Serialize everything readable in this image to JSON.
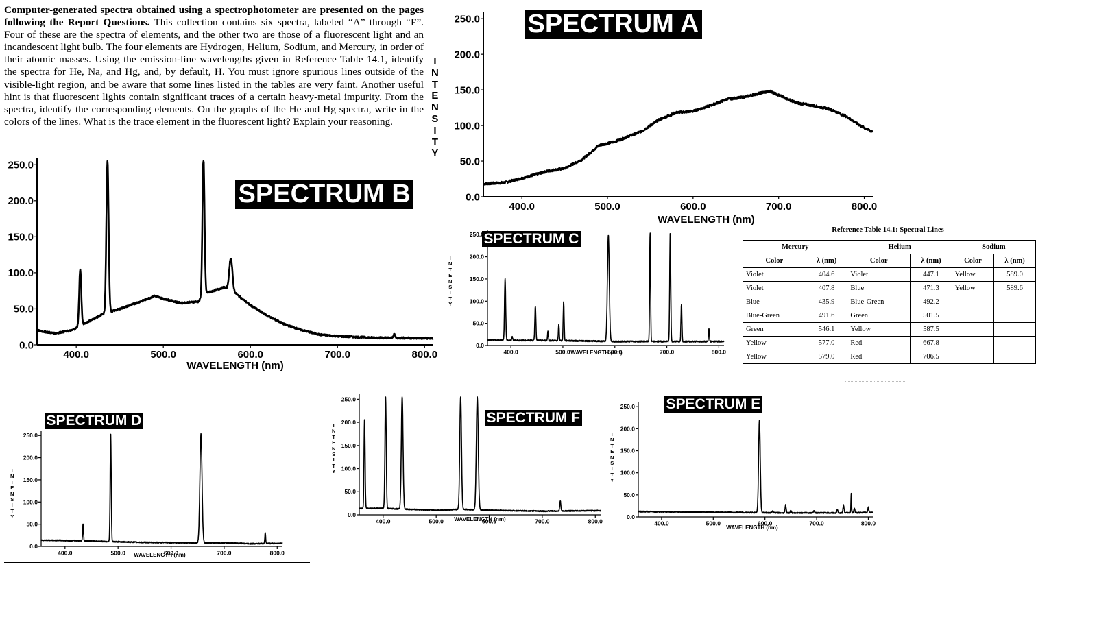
{
  "intro": {
    "bold": "Computer-generated spectra obtained using a spectrophotometer are presented on the pages following the Report Questions.",
    "text": " This collection contains six spectra, labeled “A” through “F”. Four of these are the spectra of elements, and the other two are those of a fluorescent light and an incandescent light bulb. The four elements are Hydrogen, Helium, Sodium, and Mercury, in order of their atomic masses. Using the emission-line wavelengths given in Reference Table 14.1, identify the spectra for He, Na, and Hg, and, by default, H. You must ignore spurious lines outside of the visible-light region, and be aware that some lines listed in the tables are very faint. Another useful hint is that fluorescent lights contain significant traces of a certain heavy-metal impurity. From the spectra, identify the corresponding elements. On the graphs of the He and Hg spectra, write in the colors of the lines. What is the trace element in the fluorescent light? Explain your reasoning."
  },
  "reference_table": {
    "caption": "Reference Table 14.1: Spectral Lines",
    "groups": [
      "Mercury",
      "Helium",
      "Sodium"
    ],
    "col_color": "Color",
    "col_lambda": "λ (nm)",
    "rows": [
      [
        "Violet",
        "404.6",
        "Violet",
        "447.1",
        "Yellow",
        "589.0"
      ],
      [
        "Violet",
        "407.8",
        "Blue",
        "471.3",
        "Yellow",
        "589.6"
      ],
      [
        "Blue",
        "435.9",
        "Blue-Green",
        "492.2",
        "",
        ""
      ],
      [
        "Blue-Green",
        "491.6",
        "Green",
        "501.5",
        "",
        ""
      ],
      [
        "Green",
        "546.1",
        "Yellow",
        "587.5",
        "",
        ""
      ],
      [
        "Yellow",
        "577.0",
        "Red",
        "667.8",
        "",
        ""
      ],
      [
        "Yellow",
        "579.0",
        "Red",
        "706.5",
        "",
        ""
      ]
    ]
  },
  "chart_data": [
    {
      "id": "A",
      "type": "line",
      "title": "SPECTRUM A",
      "xlabel": "WAVELENGTH (nm)",
      "ylabel": "INTENSITY",
      "xlim": [
        355,
        810
      ],
      "ylim": [
        0,
        255
      ],
      "xticks": [
        "400.0",
        "500.0",
        "600.0",
        "700.0",
        "800.0"
      ],
      "yticks": [
        "0.0",
        "50.0",
        "100.0",
        "150.0",
        "200.0",
        "250.0"
      ],
      "grid": false,
      "baseline": [
        [
          355,
          18
        ],
        [
          380,
          20
        ],
        [
          400,
          26
        ],
        [
          430,
          36
        ],
        [
          450,
          40
        ],
        [
          470,
          52
        ],
        [
          490,
          72
        ],
        [
          510,
          78
        ],
        [
          540,
          92
        ],
        [
          560,
          108
        ],
        [
          580,
          118
        ],
        [
          600,
          120
        ],
        [
          620,
          128
        ],
        [
          640,
          137
        ],
        [
          660,
          140
        ],
        [
          680,
          146
        ],
        [
          690,
          148
        ],
        [
          705,
          140
        ],
        [
          720,
          132
        ],
        [
          740,
          128
        ],
        [
          760,
          123
        ],
        [
          780,
          112
        ],
        [
          795,
          100
        ],
        [
          808,
          92
        ]
      ],
      "peaks": [],
      "noise": 1.5
    },
    {
      "id": "B",
      "type": "line",
      "title": "SPECTRUM B",
      "xlabel": "WAVELENGTH (nm)",
      "ylabel": "",
      "xlim": [
        355,
        810
      ],
      "ylim": [
        0,
        255
      ],
      "xticks": [
        "400.0",
        "500.0",
        "600.0",
        "700.0",
        "800.0"
      ],
      "yticks": [
        "0.0",
        "50.0",
        "100.0",
        "150.0",
        "200.0",
        "250.0"
      ],
      "grid": false,
      "baseline": [
        [
          355,
          20
        ],
        [
          375,
          16
        ],
        [
          395,
          20
        ],
        [
          410,
          30
        ],
        [
          430,
          42
        ],
        [
          440,
          46
        ],
        [
          460,
          54
        ],
        [
          480,
          63
        ],
        [
          490,
          68
        ],
        [
          500,
          64
        ],
        [
          520,
          58
        ],
        [
          540,
          60
        ],
        [
          550,
          72
        ],
        [
          570,
          80
        ],
        [
          580,
          74
        ],
        [
          600,
          55
        ],
        [
          620,
          40
        ],
        [
          640,
          28
        ],
        [
          660,
          20
        ],
        [
          680,
          14
        ],
        [
          700,
          12
        ],
        [
          740,
          10
        ],
        [
          810,
          9
        ]
      ],
      "peaks": [
        [
          404.6,
          78,
          1.2
        ],
        [
          435.9,
          210,
          1.3
        ],
        [
          546.1,
          192,
          1.2
        ],
        [
          577.5,
          45,
          1.8
        ],
        [
          765,
          5,
          1
        ]
      ],
      "noise": 1.2
    },
    {
      "id": "C",
      "type": "line",
      "title": "SPECTRUM C",
      "xlabel": "WAVELENGTH (nm)",
      "ylabel": "INTENSITY",
      "xlim": [
        355,
        810
      ],
      "ylim": [
        0,
        255
      ],
      "xticks": [
        "400.0",
        "500.0",
        "600.0",
        "700.0",
        "800.0"
      ],
      "yticks": [
        "0.0",
        "50.0",
        "100.0",
        "150.0",
        "200.0",
        "250.0"
      ],
      "grid": false,
      "baseline": [
        [
          355,
          12
        ],
        [
          500,
          11
        ],
        [
          600,
          9
        ],
        [
          700,
          9
        ],
        [
          810,
          9
        ]
      ],
      "peaks": [
        [
          388.9,
          140,
          1.1
        ],
        [
          402.6,
          8,
          1
        ],
        [
          447.1,
          78,
          1
        ],
        [
          471.3,
          22,
          0.8
        ],
        [
          492.2,
          37,
          0.8
        ],
        [
          501.5,
          88,
          0.9
        ],
        [
          587.5,
          240,
          1.8
        ],
        [
          667.8,
          245,
          0.9
        ],
        [
          706.5,
          245,
          1.0
        ],
        [
          728.1,
          85,
          0.9
        ],
        [
          781,
          30,
          0.8
        ]
      ],
      "noise": 1.5
    },
    {
      "id": "D",
      "type": "line",
      "title": "SPECTRUM D",
      "xlabel": "WAVELENGTH (nm)",
      "ylabel": "INTENSITY",
      "xlim": [
        355,
        810
      ],
      "ylim": [
        0,
        255
      ],
      "xticks": [
        "400.0",
        "500.0",
        "600.0",
        "700.0",
        "800.0"
      ],
      "yticks": [
        "0.0",
        "50.0",
        "100.0",
        "150.0",
        "200.0",
        "250.0"
      ],
      "grid": false,
      "baseline": [
        [
          355,
          14
        ],
        [
          420,
          13
        ],
        [
          480,
          11
        ],
        [
          550,
          9
        ],
        [
          650,
          8
        ],
        [
          700,
          8
        ],
        [
          750,
          6
        ],
        [
          810,
          7
        ]
      ],
      "peaks": [
        [
          434.0,
          38,
          0.8
        ],
        [
          486.1,
          245,
          1.0
        ],
        [
          656.3,
          245,
          2.0
        ],
        [
          777.5,
          24,
          0.8
        ]
      ],
      "noise": 1.3
    },
    {
      "id": "F",
      "type": "line",
      "title": "SPECTRUM F",
      "xlabel": "WAVELENGTH (nm)",
      "ylabel": "INTENSITY",
      "xlim": [
        355,
        810
      ],
      "ylim": [
        0,
        255
      ],
      "xticks": [
        "400.0",
        "500.0",
        "600.0",
        "700.0",
        "800.0"
      ],
      "yticks": [
        "0.0",
        "50.0",
        "100.0",
        "150.0",
        "200.0",
        "250.0"
      ],
      "grid": false,
      "baseline": [
        [
          355,
          14
        ],
        [
          400,
          14
        ],
        [
          450,
          12
        ],
        [
          500,
          10
        ],
        [
          550,
          12
        ],
        [
          600,
          10
        ],
        [
          700,
          8
        ],
        [
          810,
          9
        ]
      ],
      "peaks": [
        [
          365,
          195,
          1.0
        ],
        [
          404.6,
          245,
          1.2
        ],
        [
          435.9,
          245,
          1.6
        ],
        [
          546.1,
          245,
          1.6
        ],
        [
          577.5,
          245,
          1.8
        ],
        [
          734,
          22,
          1
        ]
      ],
      "noise": 1.2
    },
    {
      "id": "E",
      "type": "line",
      "title": "SPECTRUM E",
      "xlabel": "WAVELENGTH (nm)",
      "ylabel": "INTENSITY",
      "xlim": [
        355,
        810
      ],
      "ylim": [
        0,
        255
      ],
      "xticks": [
        "400.0",
        "500.0",
        "600.0",
        "700.0",
        "800.0"
      ],
      "yticks": [
        "0.0",
        "50.0",
        "100.0",
        "150.0",
        "200.0",
        "250.0"
      ],
      "grid": false,
      "baseline": [
        [
          355,
          12
        ],
        [
          450,
          11
        ],
        [
          550,
          10
        ],
        [
          650,
          9
        ],
        [
          750,
          9
        ],
        [
          810,
          10
        ]
      ],
      "peaks": [
        [
          589.3,
          210,
          1.6
        ],
        [
          615,
          5,
          1
        ],
        [
          640,
          18,
          1
        ],
        [
          650,
          6,
          1
        ],
        [
          695,
          5,
          1
        ],
        [
          740,
          8,
          1
        ],
        [
          752,
          18,
          1
        ],
        [
          767,
          45,
          0.6
        ],
        [
          773,
          10,
          1
        ],
        [
          800,
          12,
          1
        ]
      ],
      "noise": 1.3
    }
  ]
}
